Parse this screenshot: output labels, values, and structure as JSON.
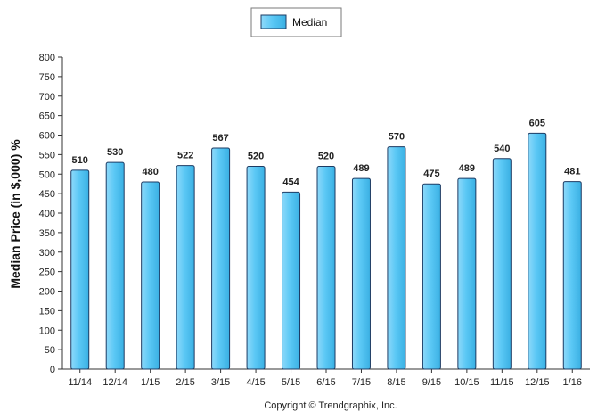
{
  "chart_data": {
    "type": "bar",
    "categories": [
      "11/14",
      "12/14",
      "1/15",
      "2/15",
      "3/15",
      "4/15",
      "5/15",
      "6/15",
      "7/15",
      "8/15",
      "9/15",
      "10/15",
      "11/15",
      "12/15",
      "1/16"
    ],
    "series": [
      {
        "name": "Median",
        "values": [
          510,
          530,
          480,
          522,
          567,
          520,
          454,
          520,
          489,
          570,
          475,
          489,
          540,
          605,
          481
        ]
      }
    ],
    "ylabel": "Median Price (in $,000) %",
    "ylim": [
      0,
      800
    ],
    "ytick_step": 50,
    "legend_position": "top-center",
    "bar_color": "#5bc8f5",
    "bar_edge_color": "#1d3b63"
  },
  "footer": {
    "copyright": "Copyright © Trendgraphix, Inc."
  }
}
